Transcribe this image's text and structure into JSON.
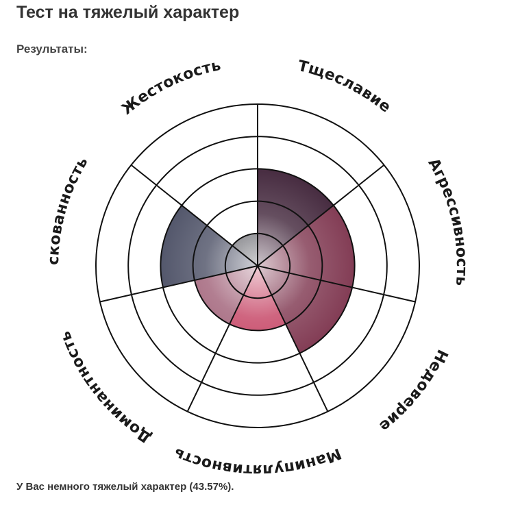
{
  "page": {
    "title": "Тест на тяжелый характер",
    "subtitle": "Результаты:",
    "result_text": "У Вас немного тяжелый характер (43.57%)."
  },
  "chart_data": {
    "type": "polar-area",
    "title": "",
    "rings": 5,
    "r_max": 5,
    "grid": true,
    "categories": [
      "Тщеславие",
      "Агрессивность",
      "Недоверие",
      "Манипулятивность",
      "Доминантность",
      "Рискованность",
      "Жестокость"
    ],
    "values": [
      3,
      3,
      3,
      2,
      2,
      3,
      1
    ],
    "colors": [
      "#3a1d33",
      "#7a2f49",
      "#7a2f49",
      "#c23a5c",
      "#9c5a72",
      "#474b61",
      "#4a4a52"
    ]
  }
}
